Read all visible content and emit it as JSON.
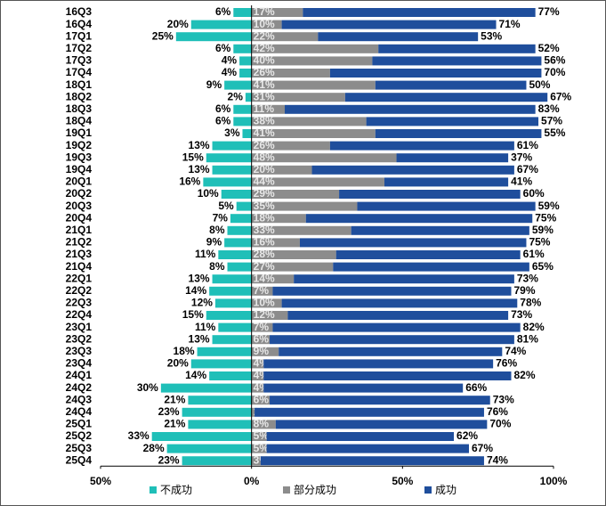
{
  "chart_data": {
    "type": "diverging_stacked_bar",
    "categories": [
      "16Q3",
      "16Q4",
      "17Q1",
      "17Q2",
      "17Q3",
      "17Q4",
      "18Q1",
      "18Q2",
      "18Q3",
      "18Q4",
      "19Q1",
      "19Q2",
      "19Q3",
      "19Q4",
      "20Q1",
      "20Q2",
      "20Q3",
      "20Q4",
      "21Q1",
      "21Q2",
      "21Q3",
      "21Q4",
      "22Q1",
      "22Q2",
      "22Q3",
      "22Q4",
      "23Q1",
      "23Q2",
      "23Q3",
      "23Q4",
      "24Q1",
      "24Q2",
      "24Q3",
      "24Q4",
      "25Q1",
      "25Q2",
      "25Q3",
      "25Q4"
    ],
    "series": [
      {
        "name": "不成功",
        "color": "#1fbfb8",
        "side": "left",
        "values": [
          6,
          20,
          25,
          6,
          4,
          4,
          9,
          2,
          6,
          6,
          3,
          13,
          15,
          13,
          16,
          10,
          5,
          7,
          8,
          9,
          11,
          8,
          13,
          14,
          12,
          15,
          11,
          13,
          18,
          20,
          14,
          30,
          21,
          23,
          21,
          33,
          28,
          23
        ],
        "value_labels": [
          "6%",
          "20%",
          "25%",
          "6%",
          "4%",
          "4%",
          "9%",
          "2%",
          "6%",
          "6%",
          "3%",
          "13%",
          "15%",
          "13%",
          "16%",
          "10%",
          "5%",
          "7%",
          "8%",
          "9%",
          "11%",
          "8%",
          "13%",
          "14%",
          "12%",
          "15%",
          "11%",
          "13%",
          "18%",
          "20%",
          "14%",
          "30%",
          "21%",
          "23%",
          "21%",
          "33%",
          "28%",
          "23%"
        ]
      },
      {
        "name": "部分成功",
        "color": "#8c8c8c",
        "side": "right",
        "values": [
          17,
          10,
          22,
          42,
          40,
          26,
          41,
          31,
          11,
          38,
          41,
          26,
          48,
          20,
          44,
          29,
          35,
          18,
          33,
          16,
          28,
          27,
          14,
          7,
          10,
          12,
          7,
          6,
          9,
          4,
          4,
          4,
          6,
          1,
          8,
          5,
          5,
          3
        ],
        "value_labels": [
          "17%",
          "10%",
          "22%",
          "42%",
          "40%",
          "26%",
          "41%",
          "31%",
          "11%",
          "38%",
          "41%",
          "26%",
          "48%",
          "20%",
          "44%",
          "29%",
          "35%",
          "18%",
          "33%",
          "16%",
          "28%",
          "27%",
          "14%",
          "7%",
          "10%",
          "12%",
          "7%",
          "6%",
          "9%",
          "4%",
          "4%",
          "4%",
          "6%",
          "1%",
          "8%",
          "5%",
          "5%",
          "3%"
        ]
      },
      {
        "name": "成功",
        "color": "#1f4e9c",
        "side": "right",
        "values": [
          77,
          71,
          53,
          52,
          56,
          70,
          50,
          67,
          83,
          57,
          55,
          61,
          37,
          67,
          41,
          60,
          59,
          75,
          59,
          75,
          61,
          65,
          73,
          79,
          78,
          73,
          82,
          81,
          74,
          76,
          82,
          66,
          73,
          76,
          70,
          62,
          67,
          74
        ],
        "value_labels": [
          "77%",
          "71%",
          "53%",
          "52%",
          "56%",
          "70%",
          "50%",
          "67%",
          "83%",
          "57%",
          "55%",
          "61%",
          "37%",
          "67%",
          "41%",
          "60%",
          "59%",
          "75%",
          "59%",
          "75%",
          "61%",
          "65%",
          "73%",
          "79%",
          "78%",
          "73%",
          "82%",
          "81%",
          "74%",
          "76%",
          "82%",
          "66%",
          "73%",
          "76%",
          "70%",
          "62%",
          "67%",
          "74%"
        ]
      }
    ],
    "xlim": [
      -50,
      100
    ],
    "xticks": [
      {
        "value": -50,
        "label": "50%"
      },
      {
        "value": 0,
        "label": "0%"
      },
      {
        "value": 50,
        "label": "50%"
      },
      {
        "value": 100,
        "label": "100%"
      }
    ],
    "legend": "bottom"
  }
}
